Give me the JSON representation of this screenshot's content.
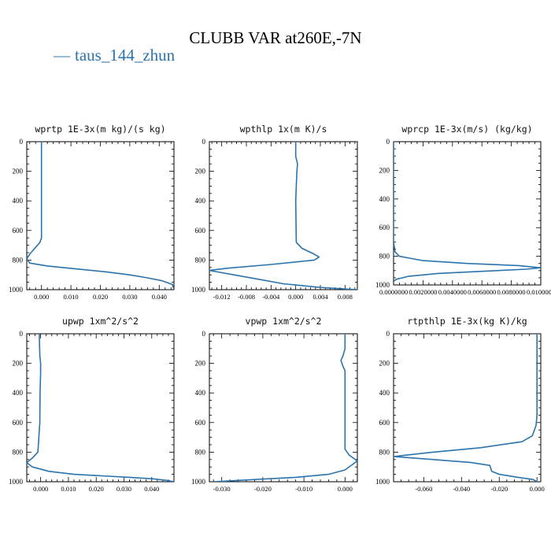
{
  "title": "CLUBB VAR at260E,-7N",
  "legend": {
    "series_name": "taus_144_zhun",
    "color": "#2b73ad"
  },
  "chart_data": [
    {
      "type": "line",
      "title": "wprtp  1E-3x(m kg)/(s kg)",
      "xlim": [
        -0.005,
        0.045
      ],
      "ylim": [
        1000,
        0
      ],
      "xticks": [
        0.0,
        0.01,
        0.02,
        0.03,
        0.04
      ],
      "xtick_labels": [
        "0.000",
        "0.010",
        "0.020",
        "0.030",
        "0.040"
      ],
      "yticks": [
        0,
        200,
        400,
        600,
        800,
        1000
      ],
      "series": [
        {
          "name": "taus_144_zhun",
          "x": [
            0.0,
            0.0,
            0.0,
            0.0,
            0.0,
            -0.0005,
            -0.004,
            -0.005,
            -0.004,
            0.002,
            0.012,
            0.022,
            0.03,
            0.036,
            0.041,
            0.0445,
            0.045
          ],
          "y": [
            0,
            100,
            300,
            500,
            650,
            680,
            760,
            790,
            820,
            840,
            860,
            880,
            900,
            920,
            940,
            965,
            1000
          ]
        }
      ]
    },
    {
      "type": "line",
      "title": "wpthlp  1x(m K)/s",
      "xlim": [
        -0.014,
        0.01
      ],
      "ylim": [
        1000,
        0
      ],
      "xticks": [
        -0.012,
        -0.008,
        -0.004,
        0.0,
        0.004,
        0.008
      ],
      "xtick_labels": [
        "-0.012",
        "-0.008",
        "-0.004",
        "0.000",
        "0.004",
        "0.008"
      ],
      "yticks": [
        0,
        200,
        400,
        600,
        800,
        1000
      ],
      "series": [
        {
          "name": "taus_144_zhun",
          "x": [
            0.0,
            0.0,
            0.0003,
            0.0002,
            0.0001,
            0.0,
            0.0001,
            0.001,
            0.003,
            0.0038,
            0.003,
            -0.004,
            -0.011,
            -0.014,
            -0.01,
            -0.006,
            -0.002,
            0.004,
            0.01
          ],
          "y": [
            0,
            100,
            150,
            200,
            300,
            400,
            680,
            720,
            760,
            780,
            800,
            830,
            855,
            870,
            900,
            930,
            960,
            985,
            1000
          ]
        }
      ]
    },
    {
      "type": "line",
      "title": "wprcp  1E-3x(m/s) (kg/kg)",
      "xlim": [
        0.0,
        0.01
      ],
      "ylim": [
        1000,
        0
      ],
      "xticks": [
        0.0,
        0.002,
        0.004,
        0.006,
        0.008,
        0.01
      ],
      "xtick_labels": [
        "0.0000000",
        "0.0020000",
        "0.0040000",
        "0.0060000",
        "0.0080000",
        "0.0100000"
      ],
      "yticks": [
        0,
        200,
        400,
        600,
        800,
        1000
      ],
      "series": [
        {
          "name": "taus_144_zhun",
          "x": [
            0.0,
            0.0,
            0.0,
            0.0001,
            0.0004,
            0.002,
            0.005,
            0.0085,
            0.01,
            0.009,
            0.006,
            0.003,
            0.001,
            0.0002,
            0.0
          ],
          "y": [
            0,
            300,
            700,
            770,
            800,
            830,
            850,
            865,
            880,
            890,
            905,
            920,
            940,
            960,
            975
          ]
        }
      ]
    },
    {
      "type": "line",
      "title": "upwp  1xm^2/s^2",
      "xlim": [
        -0.005,
        0.048
      ],
      "ylim": [
        1000,
        0
      ],
      "xticks": [
        0.0,
        0.01,
        0.02,
        0.03,
        0.04
      ],
      "xtick_labels": [
        "0.000",
        "0.010",
        "0.020",
        "0.030",
        "0.040"
      ],
      "yticks": [
        0,
        200,
        400,
        600,
        800,
        1000
      ],
      "series": [
        {
          "name": "taus_144_zhun",
          "x": [
            -0.0005,
            -0.0003,
            0.0,
            0.0,
            -0.0002,
            -0.0003,
            -0.001,
            -0.003,
            -0.005,
            -0.003,
            0.003,
            0.012,
            0.022,
            0.032,
            0.04,
            0.045,
            0.048
          ],
          "y": [
            0,
            150,
            200,
            260,
            400,
            600,
            800,
            840,
            870,
            900,
            930,
            950,
            960,
            970,
            980,
            990,
            1000
          ]
        }
      ]
    },
    {
      "type": "line",
      "title": "vpwp  1xm^2/s^2",
      "xlim": [
        -0.033,
        0.003
      ],
      "ylim": [
        1000,
        0
      ],
      "xticks": [
        -0.03,
        -0.02,
        -0.01,
        0.0
      ],
      "xtick_labels": [
        "-0.030",
        "-0.020",
        "-0.010",
        "0.000"
      ],
      "yticks": [
        0,
        200,
        400,
        600,
        800,
        1000
      ],
      "series": [
        {
          "name": "taus_144_zhun",
          "x": [
            0.0,
            0.0,
            -0.0005,
            -0.001,
            -0.0005,
            0.0,
            0.0,
            0.0,
            0.0,
            0.001,
            0.002,
            0.003,
            0.002,
            0.0,
            -0.004,
            -0.012,
            -0.022,
            -0.032
          ],
          "y": [
            0,
            100,
            150,
            180,
            220,
            250,
            300,
            500,
            780,
            820,
            840,
            860,
            880,
            920,
            950,
            970,
            985,
            1000
          ]
        }
      ]
    },
    {
      "type": "line",
      "title": "rtpthlp  1E-3x(kg K)/kg",
      "xlim": [
        -0.076,
        0.002
      ],
      "ylim": [
        1000,
        0
      ],
      "xticks": [
        -0.06,
        -0.04,
        -0.02,
        0.0
      ],
      "xtick_labels": [
        "-0.060",
        "-0.040",
        "-0.020",
        "0.000"
      ],
      "yticks": [
        0,
        200,
        400,
        600,
        800,
        1000
      ],
      "series": [
        {
          "name": "taus_144_zhun",
          "x": [
            0.0,
            0.0,
            0.0,
            -0.0005,
            -0.0025,
            -0.008,
            -0.03,
            -0.055,
            -0.076,
            -0.055,
            -0.035,
            -0.025,
            -0.024,
            -0.02,
            -0.01,
            -0.002,
            0.0
          ],
          "y": [
            0,
            300,
            550,
            620,
            690,
            730,
            770,
            800,
            830,
            850,
            870,
            890,
            930,
            950,
            970,
            985,
            1000
          ]
        }
      ]
    }
  ]
}
